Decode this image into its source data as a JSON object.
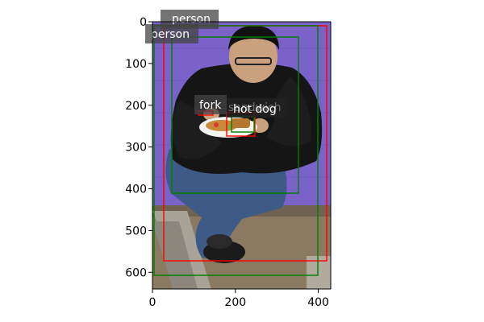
{
  "axes": {
    "x_ticks": [
      "0",
      "200",
      "400"
    ],
    "y_ticks": [
      "0",
      "100",
      "200",
      "300",
      "400",
      "500",
      "600"
    ],
    "x_range": [
      0,
      430
    ],
    "y_range": [
      0,
      640
    ]
  },
  "image": {
    "subject": "man-eating-hot-dog",
    "wall_color": "#7b62c8",
    "ground_color": "#8a7a62",
    "jacket_color": "#151515",
    "jeans_color": "#3e5a86"
  },
  "detections": [
    {
      "label": "person",
      "color": "#ff0000"
    },
    {
      "label": "person",
      "color": "#008000"
    },
    {
      "label": "fork",
      "color": "#ff0000"
    },
    {
      "label": "hot dog",
      "color": "#008000"
    },
    {
      "label": "sandwich",
      "color": "#ff0000"
    }
  ]
}
